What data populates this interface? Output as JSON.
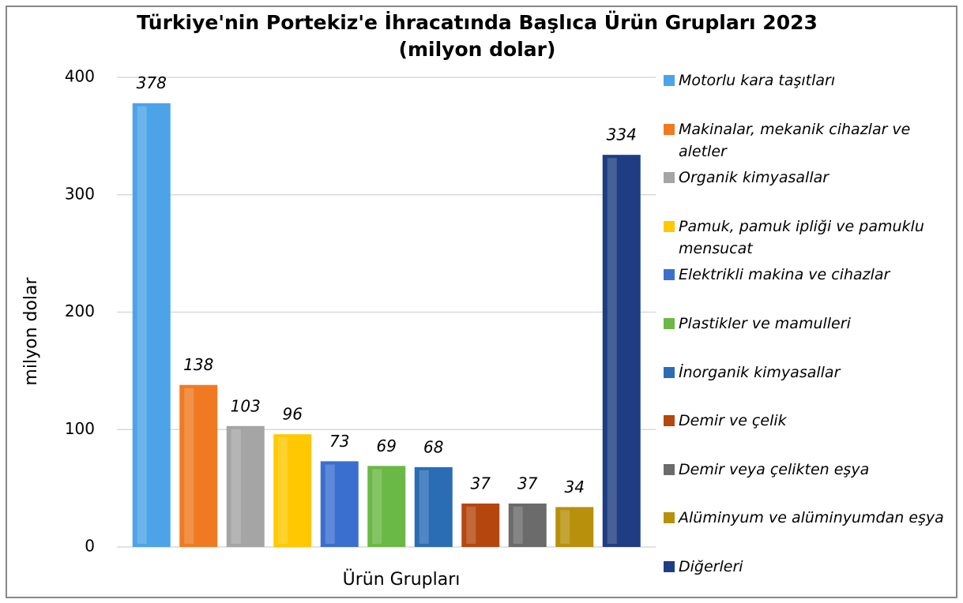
{
  "chart_data": {
    "type": "bar",
    "title": "Türkiye'nin Portekiz'e İhracatında Başlıca Ürün Grupları 2023 (milyon dolar)",
    "x_label": "Ürün Grupları",
    "y_label": "milyon dolar",
    "categories": [
      "Motorlu kara taşıtları",
      "Makinalar, mekanik cihazlar ve aletler",
      "Organik kimyasallar",
      "Pamuk, pamuk ipliği ve pamuklu mensucat",
      "Elektrikli makina ve cihazlar",
      "Plastikler ve mamulleri",
      "İnorganik kimyasallar",
      "Demir ve çelik",
      "Demir veya çelikten eşya",
      "Alüminyum ve alüminyumdan eşya",
      "Diğerleri"
    ],
    "values": [
      378,
      138,
      103,
      96,
      73,
      69,
      68,
      37,
      37,
      34,
      334
    ],
    "colors": [
      "#4da3e8",
      "#f07a22",
      "#a5a5a5",
      "#ffc800",
      "#3a6fd0",
      "#6ab845",
      "#2a6db5",
      "#b5470e",
      "#6b6b6b",
      "#b8900c",
      "#1f3d82"
    ],
    "ylim": [
      0,
      400
    ],
    "yticks": [
      0,
      100,
      200,
      300,
      400
    ],
    "grid": true,
    "legend": "right"
  }
}
